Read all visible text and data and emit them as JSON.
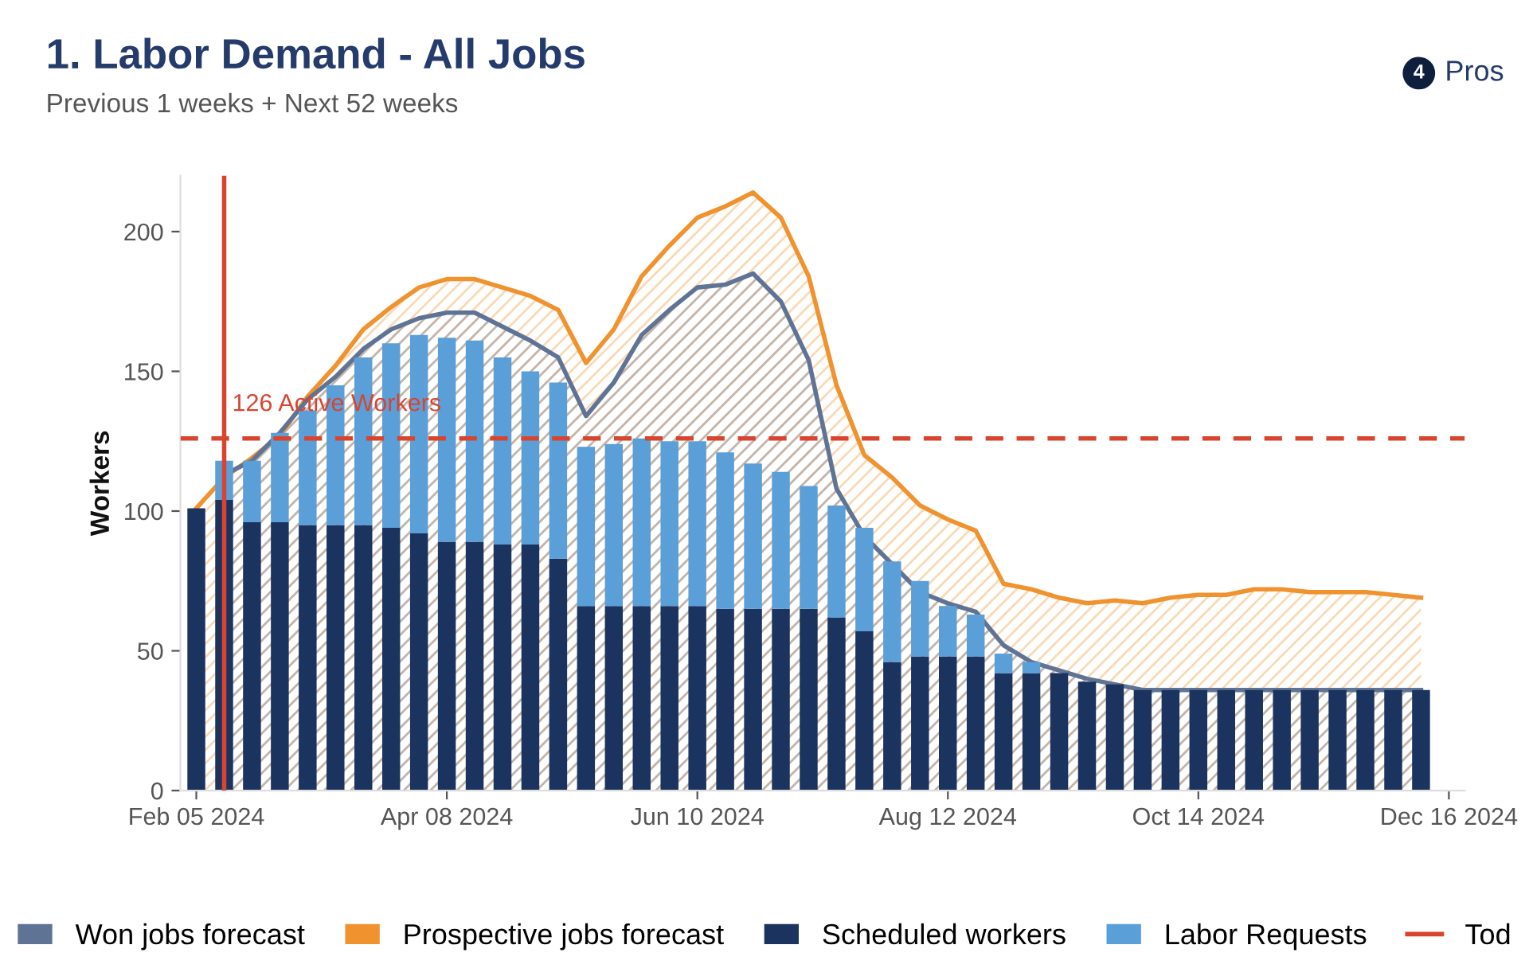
{
  "chart_data": [
    {
      "type": "bar",
      "title": "1. Labor Demand - All Jobs",
      "subtitle": "Previous 1 weeks + Next 52 weeks",
      "ylabel": "Workers",
      "stacked": true,
      "x": [
        "2024-02-05",
        "2024-02-12",
        "2024-02-19",
        "2024-02-26",
        "2024-03-04",
        "2024-03-11",
        "2024-03-18",
        "2024-03-25",
        "2024-04-01",
        "2024-04-08",
        "2024-04-15",
        "2024-04-22",
        "2024-04-29",
        "2024-05-06",
        "2024-05-13",
        "2024-05-20",
        "2024-05-27",
        "2024-06-03",
        "2024-06-10",
        "2024-06-17",
        "2024-06-24",
        "2024-07-01",
        "2024-07-08",
        "2024-07-15",
        "2024-07-22",
        "2024-07-29",
        "2024-08-05",
        "2024-08-12",
        "2024-08-19",
        "2024-08-26",
        "2024-09-02",
        "2024-09-09",
        "2024-09-16",
        "2024-09-23",
        "2024-09-30",
        "2024-10-07",
        "2024-10-14",
        "2024-10-21",
        "2024-10-28",
        "2024-11-04",
        "2024-11-11",
        "2024-11-18",
        "2024-11-25",
        "2024-12-02",
        "2024-12-09"
      ],
      "series": [
        {
          "name": "Scheduled workers",
          "color": "#1b335f",
          "values": [
            101,
            104,
            96,
            96,
            95,
            95,
            95,
            94,
            92,
            89,
            89,
            88,
            88,
            83,
            66,
            66,
            66,
            66,
            66,
            65,
            65,
            65,
            65,
            62,
            57,
            46,
            48,
            48,
            48,
            42,
            42,
            42,
            39,
            38,
            36,
            36,
            36,
            36,
            36,
            36,
            36,
            36,
            36,
            36,
            36
          ]
        },
        {
          "name": "Labor Requests",
          "color": "#5b9fd9",
          "values": [
            0,
            14,
            22,
            32,
            41,
            50,
            60,
            66,
            71,
            73,
            72,
            67,
            62,
            63,
            57,
            58,
            60,
            59,
            59,
            56,
            52,
            49,
            44,
            40,
            37,
            36,
            27,
            18,
            15,
            7,
            4,
            0,
            0,
            0,
            0,
            0,
            0,
            0,
            0,
            0,
            0,
            0,
            0,
            0,
            0
          ]
        }
      ],
      "xlim": [
        "2024-02-01",
        "2024-12-20"
      ],
      "xticks": [
        {
          "value": "2024-02-05",
          "label": "Feb 05 2024"
        },
        {
          "value": "2024-04-08",
          "label": "Apr 08 2024"
        },
        {
          "value": "2024-06-10",
          "label": "Jun 10 2024"
        },
        {
          "value": "2024-08-12",
          "label": "Aug 12 2024"
        },
        {
          "value": "2024-10-14",
          "label": "Oct 14 2024"
        },
        {
          "value": "2024-12-16",
          "label": "Dec 16 2024"
        }
      ],
      "ylim": [
        0,
        220
      ],
      "yticks": [
        0,
        50,
        100,
        150,
        200
      ],
      "ref_lines": [
        {
          "axis": "y",
          "value": 126,
          "label": "126 Active Workers",
          "color": "#d9442f",
          "line_style": "dashed"
        },
        {
          "axis": "x",
          "value": "2024-02-12",
          "label": "Tod",
          "color": "#d9442f",
          "line_style": "solid"
        }
      ],
      "annotations": [
        "4",
        "Pros"
      ],
      "grid": false,
      "legend": "bottom"
    },
    {
      "type": "area",
      "x": [
        "2024-02-05",
        "2024-02-12",
        "2024-02-19",
        "2024-02-26",
        "2024-03-04",
        "2024-03-11",
        "2024-03-18",
        "2024-03-25",
        "2024-04-01",
        "2024-04-08",
        "2024-04-15",
        "2024-04-22",
        "2024-04-29",
        "2024-05-06",
        "2024-05-13",
        "2024-05-20",
        "2024-05-27",
        "2024-06-03",
        "2024-06-10",
        "2024-06-17",
        "2024-06-24",
        "2024-07-01",
        "2024-07-08",
        "2024-07-15",
        "2024-07-22",
        "2024-07-29",
        "2024-08-05",
        "2024-08-12",
        "2024-08-19",
        "2024-08-26",
        "2024-09-02",
        "2024-09-09",
        "2024-09-16",
        "2024-09-23",
        "2024-09-30",
        "2024-10-07",
        "2024-10-14",
        "2024-10-21",
        "2024-10-28",
        "2024-11-04",
        "2024-11-11",
        "2024-11-18",
        "2024-11-25",
        "2024-12-02",
        "2024-12-09"
      ],
      "series": [
        {
          "name": "Prospective jobs forecast",
          "color": "#f0922e",
          "values": [
            101,
            112,
            119,
            127,
            141,
            152,
            165,
            173,
            180,
            183,
            183,
            180,
            177,
            172,
            153,
            165,
            184,
            195,
            205,
            209,
            214,
            205,
            184,
            145,
            120,
            112,
            102,
            97,
            93,
            74,
            72,
            69,
            67,
            68,
            67,
            69,
            70,
            70,
            72,
            72,
            71,
            71,
            71,
            70,
            69
          ]
        },
        {
          "name": "Won jobs forecast",
          "color": "#5f7395",
          "values": [
            null,
            113,
            118,
            128,
            140,
            148,
            158,
            165,
            169,
            171,
            171,
            166,
            161,
            155,
            134,
            146,
            163,
            172,
            180,
            181,
            185,
            175,
            154,
            108,
            91,
            81,
            71,
            67,
            64,
            52,
            46,
            43,
            40,
            38,
            36,
            36,
            36,
            36,
            36,
            36,
            36,
            36,
            36,
            36,
            36
          ]
        }
      ],
      "xlim": [
        "2024-02-01",
        "2024-12-20"
      ],
      "ylim": [
        0,
        220
      ],
      "tick_labels": false,
      "legend": "bottom"
    }
  ]
}
